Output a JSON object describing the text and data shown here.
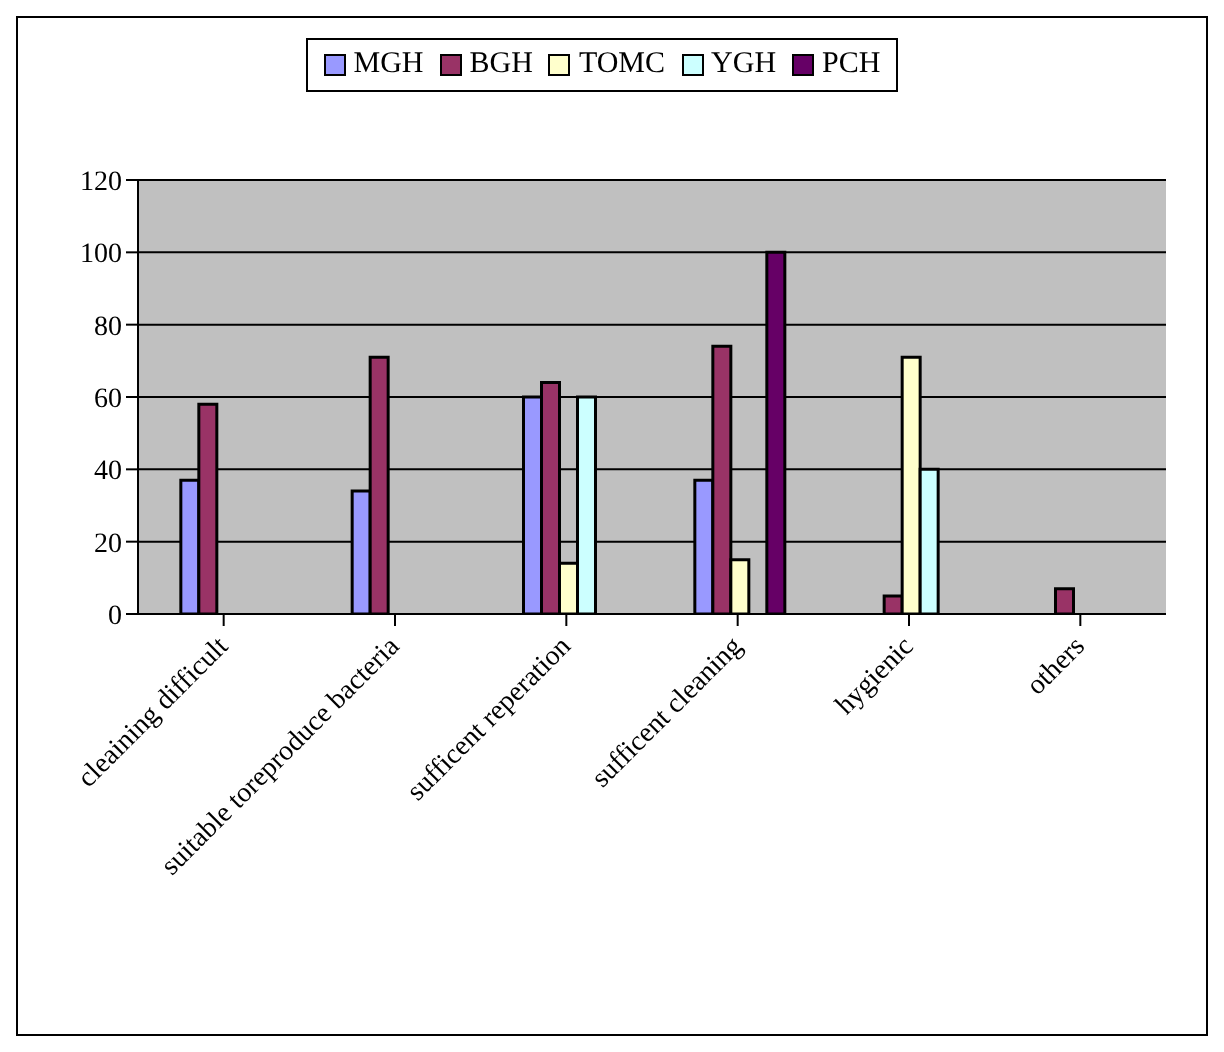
{
  "chart_data": {
    "type": "bar",
    "categories": [
      "cleaining difficult",
      "suitable toreproduce bacteria",
      "sufficent reperation",
      "sufficent cleaning",
      "hygienic",
      "others"
    ],
    "series": [
      {
        "name": "MGH",
        "color": "#9999ff",
        "values": [
          37,
          34,
          60,
          37,
          null,
          null
        ]
      },
      {
        "name": "BGH",
        "color": "#993366",
        "values": [
          58,
          71,
          64,
          74,
          5,
          7
        ]
      },
      {
        "name": "TOMC",
        "color": "#ffffcc",
        "values": [
          null,
          null,
          14,
          15,
          71,
          null
        ]
      },
      {
        "name": "YGH",
        "color": "#ccffff",
        "values": [
          null,
          null,
          60,
          null,
          40,
          null
        ]
      },
      {
        "name": "PCH",
        "color": "#660066",
        "values": [
          null,
          null,
          null,
          100,
          null,
          null
        ]
      }
    ],
    "ylim": [
      0,
      120
    ],
    "yticks": [
      0,
      20,
      40,
      60,
      80,
      100,
      120
    ],
    "grid": "y",
    "legend": "top"
  }
}
